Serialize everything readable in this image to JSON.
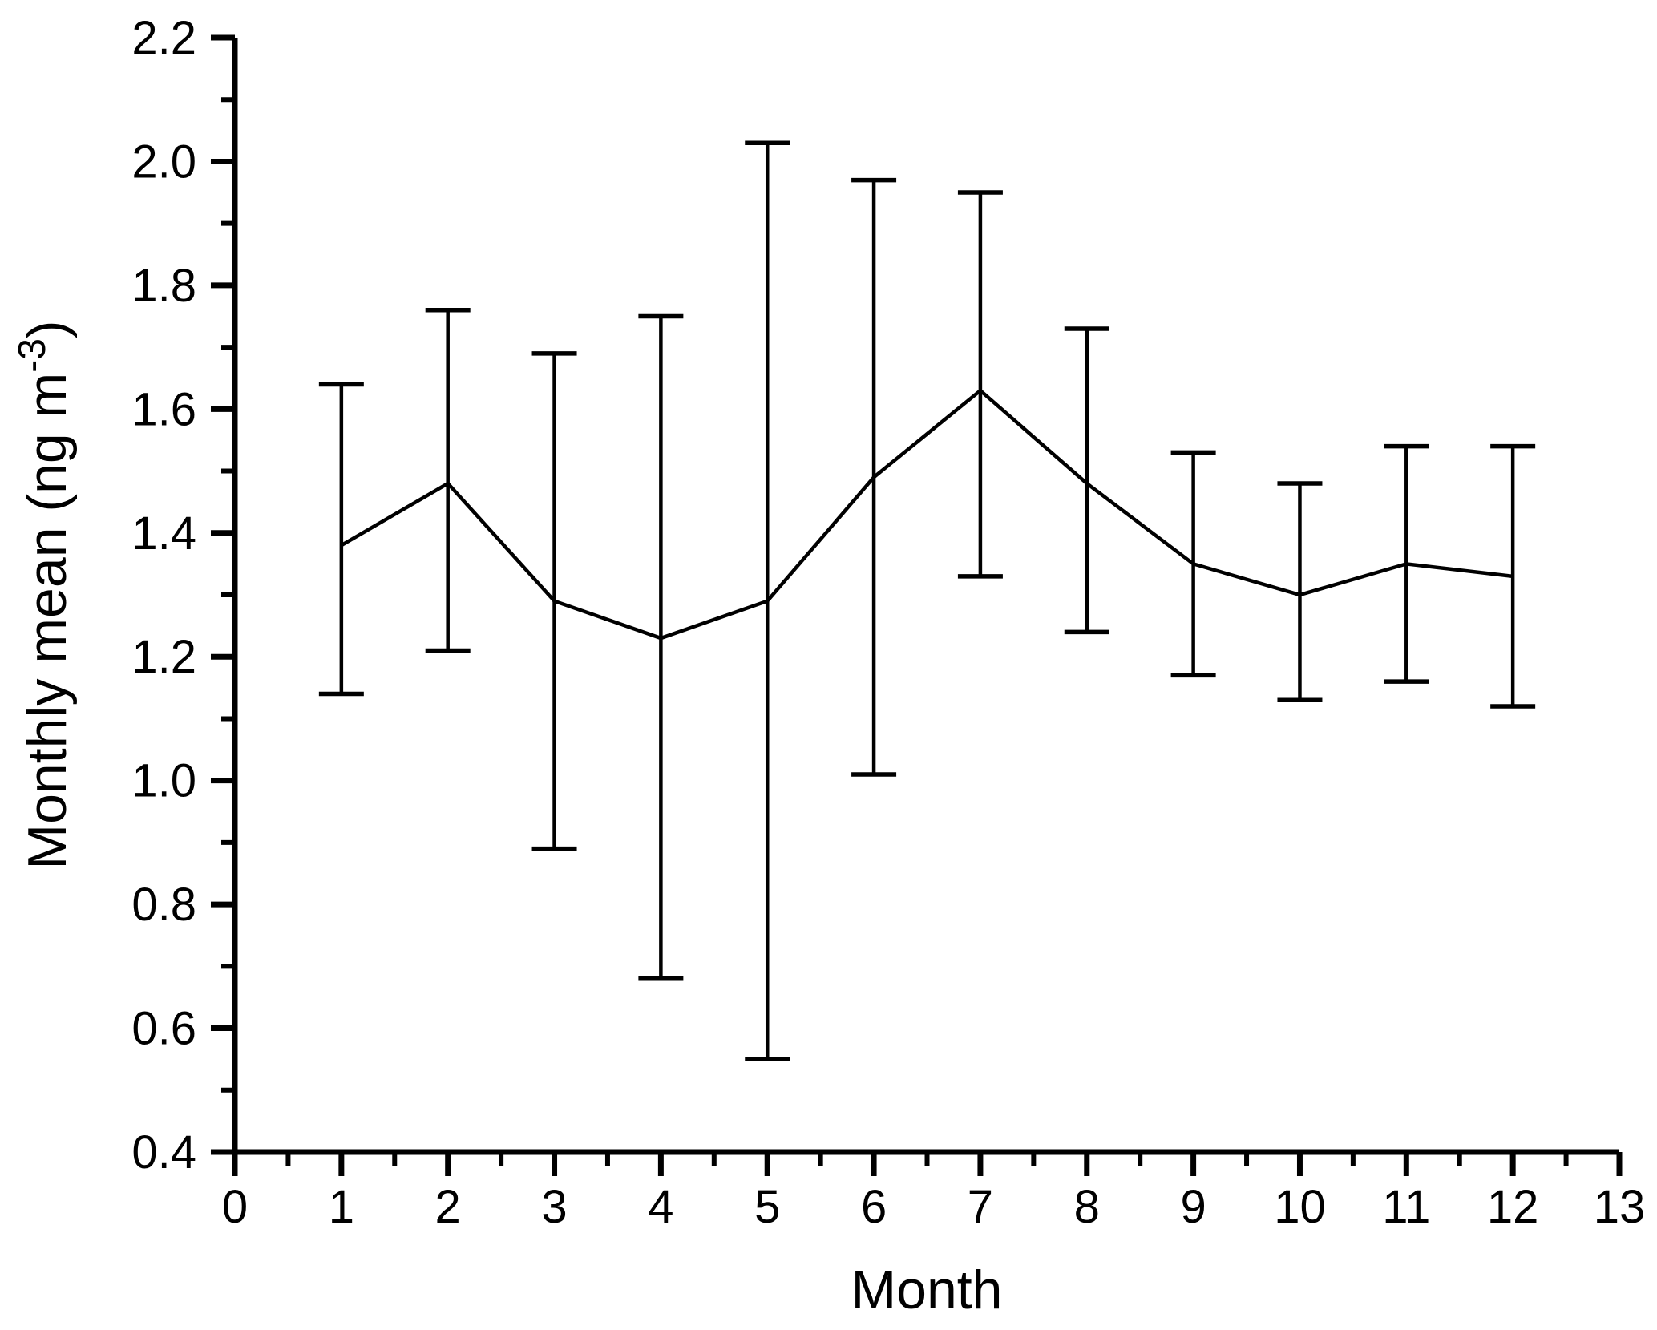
{
  "chart_data": {
    "type": "line",
    "title": "",
    "xlabel": "Month",
    "ylabel": "Monthly mean (ng m⁻³)",
    "ylabel_parts": {
      "prefix": "Monthly mean (ng m",
      "superscript": "-3",
      "suffix": ")"
    },
    "x": [
      1,
      2,
      3,
      4,
      5,
      6,
      7,
      8,
      9,
      10,
      11,
      12
    ],
    "series": [
      {
        "name": "Monthly mean",
        "values": [
          1.38,
          1.48,
          1.29,
          1.23,
          1.29,
          1.49,
          1.63,
          1.48,
          1.35,
          1.3,
          1.35,
          1.33
        ],
        "error_upper": [
          1.64,
          1.76,
          1.69,
          1.75,
          2.03,
          1.97,
          1.95,
          1.73,
          1.53,
          1.48,
          1.54,
          1.54
        ],
        "error_lower": [
          1.14,
          1.21,
          0.89,
          0.68,
          0.55,
          1.01,
          1.33,
          1.24,
          1.17,
          1.13,
          1.16,
          1.12
        ]
      }
    ],
    "xlim": [
      0,
      13
    ],
    "ylim": [
      0.4,
      2.2
    ],
    "x_major_ticks": [
      0,
      1,
      2,
      3,
      4,
      5,
      6,
      7,
      8,
      9,
      10,
      11,
      12,
      13
    ],
    "y_major_ticks": [
      0.4,
      0.6,
      0.8,
      1.0,
      1.2,
      1.4,
      1.6,
      1.8,
      2.0,
      2.2
    ],
    "x_minor_step": 0.5,
    "y_minor_step": 0.1,
    "grid": false,
    "legend": false,
    "marker": "none",
    "line_color": "#000000",
    "axis_color": "#000000",
    "background": "#ffffff"
  }
}
